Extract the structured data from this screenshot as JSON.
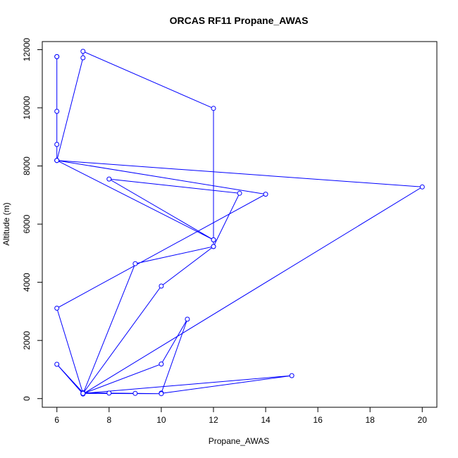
{
  "chart_data": {
    "type": "line",
    "title": "ORCAS RF11 Propane_AWAS",
    "xlabel": "Propane_AWAS",
    "ylabel": "Altitude (m)",
    "xlim": [
      5.44,
      20.56
    ],
    "ylim": [
      -298,
      12278
    ],
    "x_ticks": [
      6,
      8,
      10,
      12,
      14,
      16,
      18,
      20
    ],
    "y_ticks": [
      0,
      2000,
      4000,
      6000,
      8000,
      10000,
      12000
    ],
    "grid": false,
    "legend": "none",
    "color": "#0000ff",
    "markers": "open-circle",
    "series": [
      {
        "x": [
          6,
          6,
          6,
          6,
          6,
          6,
          7,
          7,
          12,
          12,
          12,
          9,
          7,
          10,
          11,
          10,
          10,
          15,
          7,
          10,
          9,
          8,
          7,
          6,
          7,
          20,
          6,
          14,
          6,
          7,
          10,
          12,
          13,
          8,
          12,
          6
        ],
        "y": [
          11760,
          11760,
          9880,
          8740,
          8190,
          8190,
          11720,
          11940,
          9980,
          5460,
          5230,
          4640,
          170,
          1190,
          2730,
          190,
          180,
          790,
          180,
          170,
          180,
          190,
          200,
          1180,
          160,
          7280,
          8190,
          7030,
          3110,
          180,
          3870,
          5230,
          7060,
          7550,
          5460,
          8190
        ]
      }
    ]
  }
}
